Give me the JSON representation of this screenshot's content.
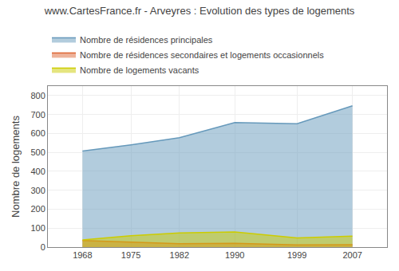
{
  "chart_data": {
    "type": "area",
    "title": "www.CartesFrance.fr - Arveyres : Evolution des types de logements",
    "ylabel": "Nombre de logements",
    "x": [
      1968,
      1975,
      1982,
      1990,
      1999,
      2007
    ],
    "series": [
      {
        "name": "Nombre de résidences principales",
        "color": "#6699bb",
        "values": [
          507,
          540,
          578,
          657,
          651,
          746
        ]
      },
      {
        "name": "Nombre de résidences secondaires et logements occasionnels",
        "color": "#dd6633",
        "values": [
          35,
          25,
          18,
          20,
          12,
          13
        ]
      },
      {
        "name": "Nombre de logements vacants",
        "color": "#cccc00",
        "values": [
          38,
          60,
          75,
          80,
          48,
          58
        ]
      }
    ],
    "xlim": [
      1963,
      2012
    ],
    "xticks": [
      1968,
      1975,
      1982,
      1990,
      1999,
      2007
    ],
    "ylim": [
      0,
      850
    ],
    "yticks": [
      0,
      100,
      200,
      300,
      400,
      500,
      600,
      700,
      800
    ],
    "grid": true,
    "legend": "top"
  }
}
